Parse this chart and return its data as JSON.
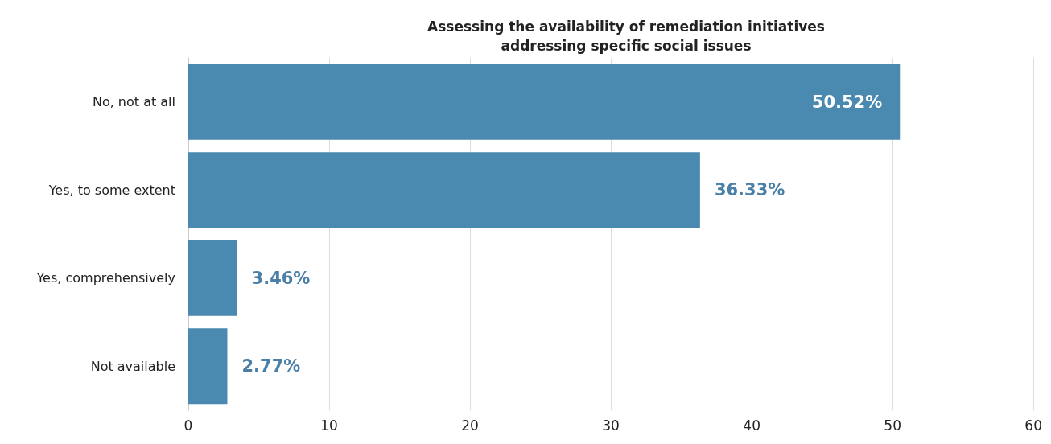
{
  "chart_data": {
    "type": "bar",
    "orientation": "horizontal",
    "title": "Assessing the availability of remediation initiatives\naddressing specific social issues",
    "categories": [
      "No, not at all",
      "Yes, to some extent",
      "Yes, comprehensively",
      "Not available"
    ],
    "values": [
      50.52,
      36.33,
      3.46,
      2.77
    ],
    "value_labels": [
      "50.52%",
      "36.33%",
      "3.46%",
      "2.77%"
    ],
    "color": "#4a89b0",
    "xlim": [
      0,
      60
    ],
    "xticks": [
      0,
      10,
      20,
      30,
      40,
      50,
      60
    ],
    "grid": "x"
  }
}
